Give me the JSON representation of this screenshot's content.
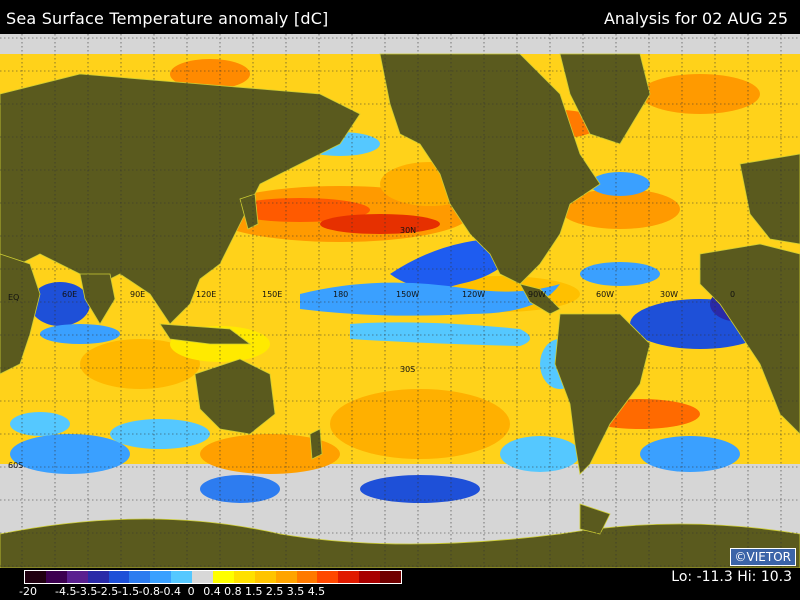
{
  "header": {
    "title": "Sea Surface Temperature anomaly [dC]",
    "analysis": "Analysis for 02 AUG 25"
  },
  "map": {
    "lon_labels": [
      "60E",
      "90E",
      "120E",
      "150E",
      "180",
      "150W",
      "120W",
      "90W",
      "60W",
      "30W",
      "0"
    ],
    "lat_labels": [
      "30N",
      "EQ",
      "30S",
      "60S"
    ]
  },
  "colorbar": {
    "colors": [
      "#200010",
      "#3c0050",
      "#5a2090",
      "#2a2aa8",
      "#1e50d8",
      "#2d7cf0",
      "#3aa0ff",
      "#55c8ff",
      "#d8d8d8",
      "#ffff00",
      "#ffe000",
      "#ffc400",
      "#ffa400",
      "#ff7a00",
      "#ff4800",
      "#e01a00",
      "#a80000",
      "#700000"
    ],
    "tick_labels": [
      "-20",
      "-4.5",
      "-3.5",
      "-2.5",
      "-1.5",
      "-0.8",
      "-0.4",
      "0",
      "0.4",
      "0.8",
      "1.5",
      "2.5",
      "3.5",
      "4.5"
    ]
  },
  "stats": {
    "text": "Lo: -11.3  Hi: 10.3"
  },
  "credit": "©VIETOR"
}
